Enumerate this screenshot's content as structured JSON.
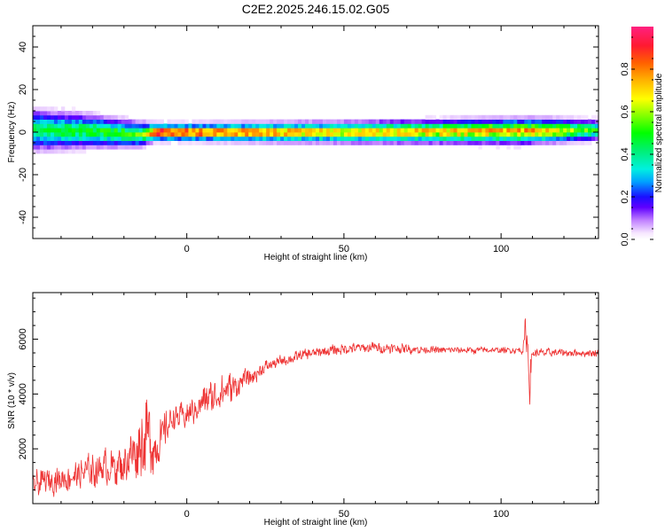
{
  "title": "C2E2.2025.246.15.02.G05",
  "chart_data": [
    {
      "type": "heatmap",
      "xlabel": "Height of straight line (km)",
      "ylabel": "Frequency (Hz)",
      "xlim": [
        -49,
        131
      ],
      "ylim": [
        -50,
        50
      ],
      "xticks": [
        0,
        50,
        100
      ],
      "xtick_labels": [
        "0",
        "50",
        "100"
      ],
      "yticks": [
        -40,
        -20,
        0,
        20,
        40
      ],
      "ytick_labels": [
        "-40",
        "-20",
        "0",
        "20",
        "40"
      ],
      "colorbar": {
        "label": "Normalized spectral amplitude",
        "range": [
          0,
          1
        ],
        "ticks": [
          0,
          0.2,
          0.4,
          0.6,
          0.8
        ],
        "tick_labels": [
          "0.0",
          "0.2",
          "0.4",
          "0.6",
          "0.8"
        ]
      },
      "ridge": {
        "description_points_x": [
          -49,
          -30,
          -15,
          -10,
          0,
          50,
          108,
          131
        ],
        "center_freq_hz": [
          1,
          0.5,
          -1,
          0,
          0,
          0,
          0.5,
          1
        ],
        "half_width_hz": [
          5,
          4,
          3,
          2,
          2,
          2.5,
          3,
          2.5
        ],
        "peak_amplitude": [
          0.45,
          0.5,
          0.55,
          0.9,
          0.85,
          0.7,
          0.8,
          0.5
        ]
      }
    },
    {
      "type": "line",
      "xlabel": "Height of straight line (km)",
      "ylabel": "SNR (10 * v/v)",
      "xlim": [
        -49,
        131
      ],
      "ylim": [
        0,
        7700
      ],
      "xticks": [
        0,
        50,
        100
      ],
      "xtick_labels": [
        "0",
        "50",
        "100"
      ],
      "yticks": [
        2000,
        4000,
        6000
      ],
      "ytick_labels": [
        "2000",
        "4000",
        "6000"
      ],
      "series": [
        {
          "name": "SNR",
          "color": "#ee3333",
          "envelope_x": [
            -49,
            -40,
            -30,
            -20,
            -15,
            -12,
            -10,
            -5,
            0,
            5,
            10,
            20,
            25,
            30,
            40,
            50,
            60,
            70,
            80,
            90,
            100,
            107,
            108,
            109,
            110,
            120,
            131
          ],
          "envelope_mean": [
            700,
            900,
            1200,
            1500,
            2200,
            2600,
            2000,
            3100,
            3200,
            3700,
            4000,
            4600,
            5000,
            5200,
            5500,
            5650,
            5700,
            5650,
            5600,
            5600,
            5600,
            5600,
            6500,
            4500,
            5500,
            5500,
            5500
          ],
          "envelope_spread": [
            700,
            700,
            900,
            1100,
            1800,
            2200,
            1500,
            700,
            700,
            900,
            1100,
            500,
            350,
            300,
            300,
            300,
            300,
            250,
            200,
            200,
            150,
            200,
            1500,
            1500,
            250,
            200,
            200
          ]
        }
      ]
    }
  ]
}
